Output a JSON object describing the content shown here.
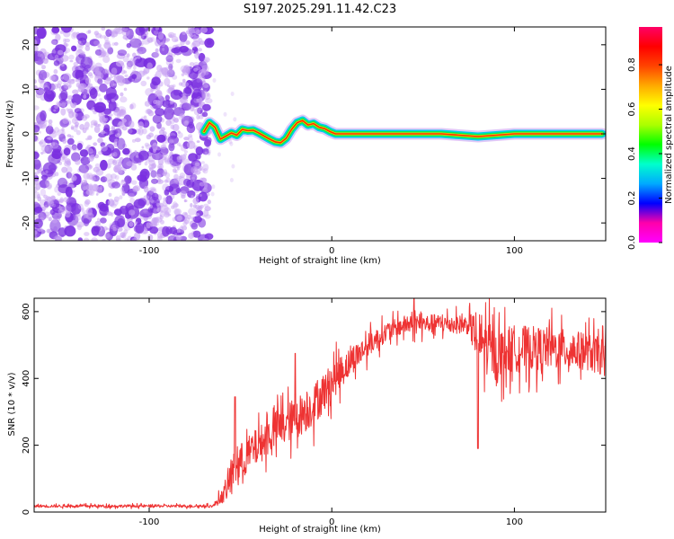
{
  "title": "S197.2025.291.11.42.C23",
  "chart_data": [
    {
      "type": "heatmap",
      "name": "spectrogram",
      "xlabel": "Height of straight line (km)",
      "ylabel": "Frequency (Hz)",
      "xlim": [
        -163,
        150
      ],
      "ylim": [
        -24,
        24
      ],
      "xticks": [
        -100,
        0,
        100
      ],
      "yticks": [
        -20,
        -10,
        0,
        10,
        20
      ],
      "noise_region_x": [
        -163,
        -70
      ],
      "signal_track": {
        "x": [
          -70,
          -67,
          -64,
          -61,
          -58,
          -55,
          -52,
          -49,
          -46,
          -43,
          -40,
          -37,
          -34,
          -31,
          -28,
          -25,
          -22,
          -19,
          -16,
          -13,
          -10,
          -7,
          -4,
          -1,
          2,
          10,
          20,
          40,
          60,
          80,
          90,
          100,
          120,
          148
        ],
        "y": [
          0.5,
          2.5,
          1.5,
          -1.2,
          -0.5,
          0.2,
          -0.3,
          1.0,
          0.7,
          0.8,
          0.2,
          -0.5,
          -1.2,
          -1.8,
          -2.0,
          -1.0,
          1.0,
          2.5,
          3.0,
          2.0,
          2.3,
          1.5,
          1.2,
          0.5,
          0.0,
          0.0,
          0.0,
          0.0,
          0.0,
          -0.6,
          -0.3,
          0.0,
          0.0,
          0.0
        ]
      }
    },
    {
      "type": "line",
      "name": "snr",
      "xlabel": "Height of straight line (km)",
      "ylabel": "SNR (10 * v/v)",
      "xlim": [
        -163,
        150
      ],
      "ylim": [
        0,
        640
      ],
      "xticks": [
        -100,
        0,
        100
      ],
      "yticks": [
        0,
        200,
        400,
        600
      ],
      "series_color": "#ee3333",
      "envelope": {
        "x": [
          -163,
          -120,
          -90,
          -65,
          -58,
          -55,
          -50,
          -40,
          -30,
          -20,
          -10,
          0,
          10,
          20,
          30,
          40,
          60,
          75,
          80,
          90,
          100,
          120,
          140,
          150
        ],
        "baseline": [
          18,
          18,
          18,
          18,
          60,
          110,
          150,
          200,
          250,
          280,
          320,
          390,
          450,
          500,
          540,
          560,
          565,
          560,
          520,
          470,
          490,
          490,
          480,
          460
        ],
        "spread": [
          6,
          6,
          6,
          6,
          40,
          80,
          80,
          80,
          80,
          90,
          90,
          80,
          60,
          50,
          40,
          40,
          40,
          40,
          130,
          110,
          100,
          90,
          80,
          80
        ]
      },
      "spikes": [
        {
          "x": -53,
          "y": 345
        },
        {
          "x": -20,
          "y": 475
        },
        {
          "x": 45,
          "y": 640
        },
        {
          "x": 80,
          "y": 190
        }
      ]
    }
  ],
  "colorbar": {
    "label": "Normalized spectral amplitude",
    "ticks": [
      "0.0",
      "0.2",
      "0.4",
      "0.6",
      "0.8"
    ],
    "tick_values": [
      0.0,
      0.2,
      0.4,
      0.6,
      0.8
    ],
    "range": [
      0.0,
      0.97
    ],
    "stops": [
      "#ff00ff",
      "#ff00aa",
      "#0000ff",
      "#00aaff",
      "#00ffcc",
      "#00ff00",
      "#aaff00",
      "#ffff00",
      "#ffaa00",
      "#ff4400",
      "#ff0000",
      "#ff0066"
    ]
  },
  "colors": {
    "noise_purple": "#7a2fe0",
    "noise_light": "#c9a4f3",
    "track_outer": "#00ccee",
    "track_inner": "#00ee55",
    "track_core": "#ff3300",
    "snr_line": "#ee3333"
  }
}
